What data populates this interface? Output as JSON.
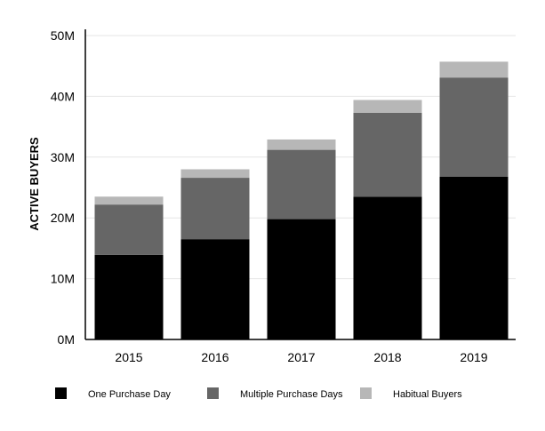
{
  "chart_data": {
    "type": "bar",
    "stacked": true,
    "title": "",
    "xlabel": "",
    "ylabel": "ACTIVE BUYERS",
    "ylim": [
      0,
      50000000
    ],
    "yticks": [
      0,
      10000000,
      20000000,
      30000000,
      40000000,
      50000000
    ],
    "ytick_labels": [
      "0M",
      "10M",
      "20M",
      "30M",
      "40M",
      "50M"
    ],
    "grid": true,
    "legend_position": "bottom",
    "categories": [
      "2015",
      "2016",
      "2017",
      "2018",
      "2019"
    ],
    "series": [
      {
        "name": "One Purchase Day",
        "color": "#000000",
        "values": [
          13900000,
          16500000,
          19800000,
          23500000,
          26800000
        ]
      },
      {
        "name": "Multiple Purchase Days",
        "color": "#666666",
        "values": [
          8300000,
          10100000,
          11400000,
          13800000,
          16300000
        ]
      },
      {
        "name": "Habitual Buyers",
        "color": "#b7b7b7",
        "values": [
          1300000,
          1400000,
          1700000,
          2100000,
          2600000
        ]
      }
    ]
  }
}
